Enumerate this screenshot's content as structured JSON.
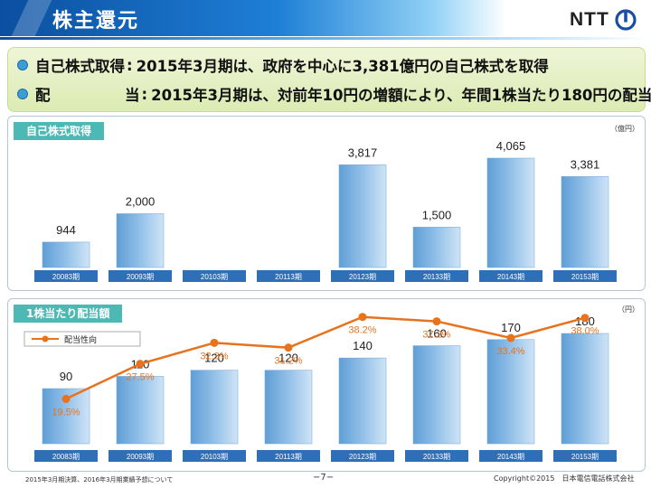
{
  "header": {
    "title": "株主還元",
    "logo_text": "NTT"
  },
  "summary": {
    "rows": [
      {
        "label": "自己株式取得",
        "text": "2015年3月期は、政府を中心に3,381億円の自己株式を取得"
      },
      {
        "label": "配　　　　　当",
        "text": "2015年3月期は、対前年10円の増額により、年間1株当たり180円の配当"
      }
    ]
  },
  "colors": {
    "bar": "#8dbde6",
    "line": "#e7731f",
    "tag": "#4cb9b5",
    "category_box": "#2f6fb7"
  },
  "buyback_panel": {
    "tag": "自己株式取得",
    "unit": "（億円）"
  },
  "dividend_panel": {
    "tag": "1株当たり配当額",
    "unit": "（円）",
    "legend": "配当性向"
  },
  "chart_data": [
    {
      "type": "bar",
      "categories": [
        "20083期",
        "20093期",
        "20103期",
        "20113期",
        "20123期",
        "20133期",
        "20143期",
        "20153期"
      ],
      "values": [
        944,
        2000,
        null,
        null,
        3817,
        1500,
        4065,
        3381
      ],
      "value_labels": [
        "944",
        "2,000",
        "",
        "",
        "3,817",
        "1,500",
        "4,065",
        "3,381"
      ],
      "title": "自己株式取得",
      "ylabel": "（億円）",
      "ylim": [
        0,
        4065
      ]
    },
    {
      "type": "bar",
      "categories": [
        "20083期",
        "20093期",
        "20103期",
        "20113期",
        "20123期",
        "20133期",
        "20143期",
        "20153期"
      ],
      "values": [
        90,
        110,
        120,
        120,
        140,
        160,
        170,
        180
      ],
      "value_labels": [
        "90",
        "110",
        "120",
        "120",
        "140",
        "160",
        "170",
        "180"
      ],
      "ylabel": "（円）",
      "ylim": [
        0,
        180
      ],
      "series": [
        {
          "name": "配当性向",
          "type": "line",
          "values": [
            19.5,
            27.5,
            32.3,
            31.2,
            38.2,
            37.2,
            33.4,
            38.0
          ],
          "labels": [
            "19.5%",
            "27.5%",
            "32.3%",
            "31.2%",
            "38.2%",
            "37.2%",
            "33.4%",
            "38.0%"
          ]
        }
      ]
    }
  ],
  "footer": {
    "note": "2015年3月期決算、2016年3月期業績予想について",
    "page": "−7−",
    "copyright": "Copyright©2015　日本電信電話株式会社"
  }
}
